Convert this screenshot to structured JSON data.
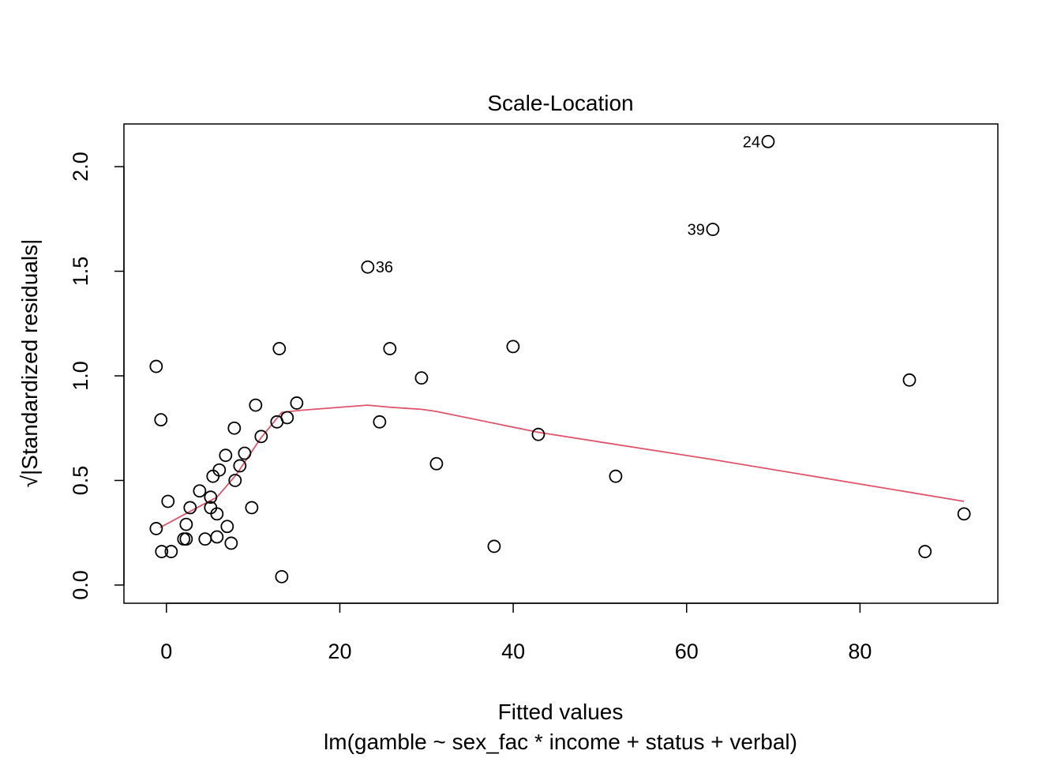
{
  "chart_data": {
    "type": "scatter",
    "title": "Scale-Location",
    "xlabel": "Fitted values",
    "subtitle": "lm(gamble ~ sex_fac * income + status + verbal)",
    "ylabel": "√|Standardized residuals|",
    "xlim": [
      -4.9,
      95.9
    ],
    "ylim": [
      -0.087,
      2.204
    ],
    "xticks": [
      0,
      20,
      40,
      60,
      80
    ],
    "xtick_labels": [
      "0",
      "20",
      "40",
      "60",
      "80"
    ],
    "yticks": [
      0,
      0.5,
      1,
      1.5,
      2
    ],
    "ytick_labels": [
      "0.0",
      "0.5",
      "1.0",
      "1.5",
      "2.0"
    ],
    "grid": false,
    "colors": {
      "points": "#000000",
      "smooth": "#DF536B"
    },
    "points": [
      [
        -0.64,
        0.79
      ],
      [
        10.29,
        0.86
      ],
      [
        15.03,
        0.87
      ],
      [
        7.83,
        0.75
      ],
      [
        12.75,
        0.78
      ],
      [
        13.93,
        0.8
      ],
      [
        10.93,
        0.71
      ],
      [
        6.83,
        0.62
      ],
      [
        9.02,
        0.63
      ],
      [
        8.47,
        0.57
      ],
      [
        6.1,
        0.55
      ],
      [
        5.37,
        0.52
      ],
      [
        7.92,
        0.5
      ],
      [
        3.83,
        0.45
      ],
      [
        5.1,
        0.42
      ],
      [
        0.18,
        0.4
      ],
      [
        2.73,
        0.37
      ],
      [
        5.1,
        0.37
      ],
      [
        9.84,
        0.37
      ],
      [
        5.83,
        0.34
      ],
      [
        -1.18,
        0.27
      ],
      [
        2.28,
        0.29
      ],
      [
        7.01,
        0.28
      ],
      [
        2.28,
        0.22
      ],
      [
        2.0,
        0.22
      ],
      [
        4.46,
        0.22
      ],
      [
        5.83,
        0.23
      ],
      [
        7.47,
        0.2
      ],
      [
        -0.55,
        0.16
      ],
      [
        0.55,
        0.16
      ],
      [
        13.3,
        0.04
      ],
      [
        -1.18,
        1.045
      ],
      [
        13.02,
        1.13
      ],
      [
        23.22,
        1.52
      ],
      [
        25.77,
        1.13
      ],
      [
        29.42,
        0.99
      ],
      [
        24.59,
        0.78
      ],
      [
        31.15,
        0.58
      ],
      [
        37.8,
        0.185
      ],
      [
        39.98,
        1.14
      ],
      [
        42.9,
        0.72
      ],
      [
        51.82,
        0.52
      ],
      [
        63.02,
        1.7
      ],
      [
        69.4,
        2.12
      ],
      [
        85.7,
        0.98
      ],
      [
        87.5,
        0.16
      ],
      [
        92.0,
        0.34
      ]
    ],
    "labeled_points": [
      {
        "label": "36",
        "x": 23.22,
        "y": 1.52,
        "side": "right"
      },
      {
        "label": "39",
        "x": 63.02,
        "y": 1.7,
        "side": "left"
      },
      {
        "label": "24",
        "x": 69.4,
        "y": 2.12,
        "side": "left"
      }
    ],
    "smooth_line": [
      [
        -0.73,
        0.275
      ],
      [
        2.64,
        0.35
      ],
      [
        5.83,
        0.42
      ],
      [
        8.1,
        0.53
      ],
      [
        10.84,
        0.7
      ],
      [
        13.3,
        0.825
      ],
      [
        15.4,
        0.835
      ],
      [
        23.2,
        0.86
      ],
      [
        25.8,
        0.85
      ],
      [
        29.4,
        0.84
      ],
      [
        31.1,
        0.83
      ],
      [
        42.9,
        0.73
      ],
      [
        63,
        0.6
      ],
      [
        92,
        0.4
      ]
    ]
  }
}
